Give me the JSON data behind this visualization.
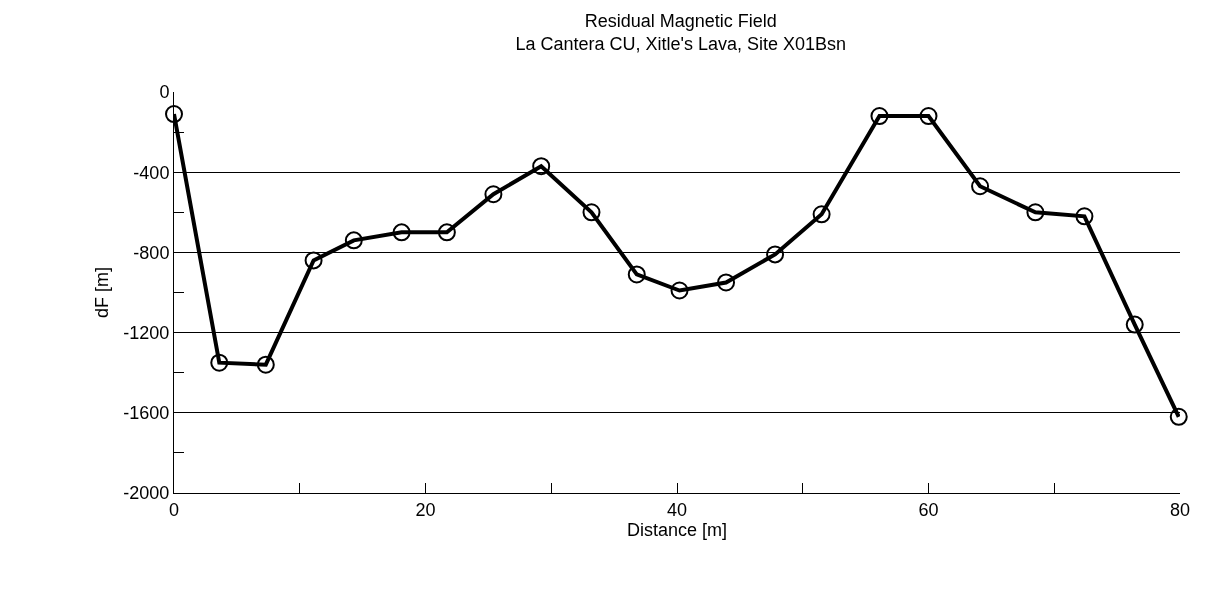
{
  "chart_data": {
    "type": "line",
    "title": "Residual Magnetic Field",
    "subtitle": "La Cantera CU, Xitle's Lava, Site X01Bsn",
    "xlabel": "Distance [m]",
    "ylabel": "dF [m]",
    "x": [
      0,
      3.6,
      7.3,
      11.1,
      14.3,
      18.1,
      21.7,
      25.4,
      29.2,
      33.2,
      36.8,
      40.2,
      43.9,
      47.8,
      51.5,
      56.1,
      60.0,
      64.1,
      68.5,
      72.4,
      76.4,
      79.9
    ],
    "series": [
      {
        "color": "#000000",
        "values": [
          -110,
          -1350,
          -1360,
          -840,
          -740,
          -700,
          -700,
          -510,
          -370,
          -600,
          -910,
          -990,
          -950,
          -810,
          -610,
          -120,
          -120,
          -470,
          -600,
          -620,
          -1160,
          -1620
        ]
      }
    ],
    "xlim": [
      0,
      80
    ],
    "xticks": [
      0,
      20,
      40,
      60,
      80
    ],
    "ylim": [
      -2000,
      0
    ],
    "yticks": [
      -2000,
      -1600,
      -1200,
      -800,
      -400,
      0
    ],
    "grid": "y",
    "marker": "circle",
    "line_style": "solid"
  }
}
